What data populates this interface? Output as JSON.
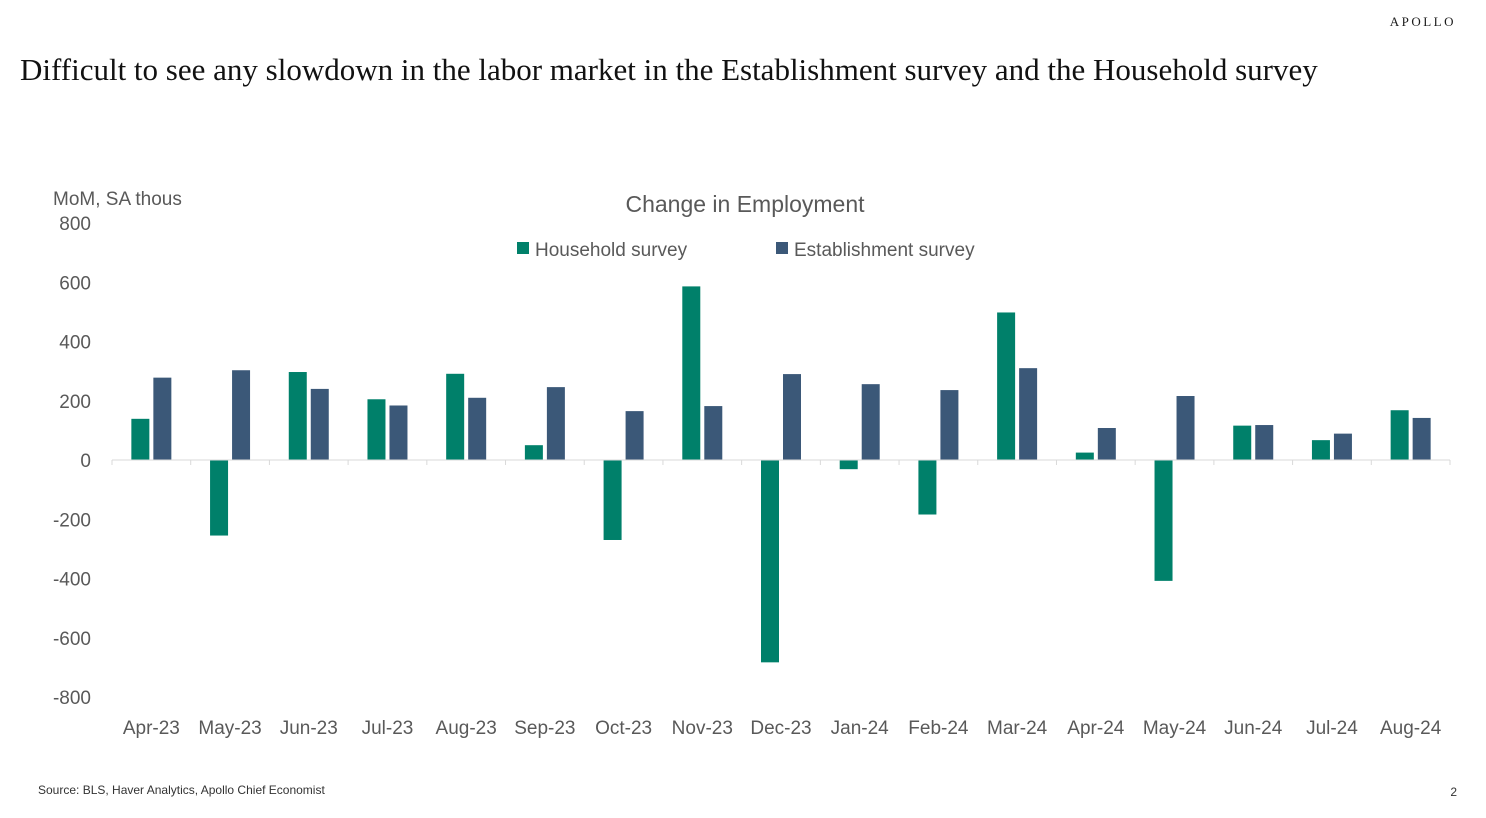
{
  "brand": "APOLLO",
  "headline": "Difficult to see any slowdown in the labor market in the Establishment survey and the Household survey",
  "source": "Source: BLS, Haver Analytics, Apollo Chief Economist",
  "page_number": "2",
  "colors": {
    "household": "#00806A",
    "establishment": "#3B5878",
    "axis": "#D9D9D9",
    "text": "#595959"
  },
  "chart_data": {
    "type": "bar",
    "title": "Change in Employment",
    "ylabel": "MoM, SA thous",
    "xlabel": "",
    "ylim": [
      -800,
      800
    ],
    "yticks": [
      800,
      600,
      400,
      200,
      0,
      -200,
      -400,
      -600,
      -800
    ],
    "grid": false,
    "legend_position": "top-center",
    "categories": [
      "Apr-23",
      "May-23",
      "Jun-23",
      "Jul-23",
      "Aug-23",
      "Sep-23",
      "Oct-23",
      "Nov-23",
      "Dec-23",
      "Jan-24",
      "Feb-24",
      "Mar-24",
      "Apr-24",
      "May-24",
      "Jun-24",
      "Jul-24",
      "Aug-24"
    ],
    "series": [
      {
        "name": "Household survey",
        "color": "#00806A",
        "values": [
          139,
          -255,
          297,
          205,
          291,
          50,
          -270,
          586,
          -683,
          -31,
          -184,
          498,
          25,
          -408,
          116,
          67,
          168
        ]
      },
      {
        "name": "Establishment survey",
        "color": "#3B5878",
        "values": [
          278,
          303,
          240,
          184,
          210,
          246,
          165,
          182,
          290,
          256,
          236,
          310,
          108,
          216,
          118,
          89,
          142
        ]
      }
    ]
  }
}
